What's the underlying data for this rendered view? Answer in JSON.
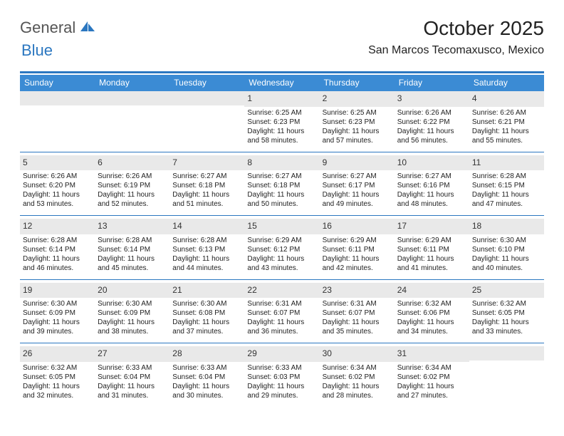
{
  "logo": {
    "general": "General",
    "blue": "Blue",
    "shape_color": "#2b77c0",
    "general_color": "#555555"
  },
  "title": "October 2025",
  "location": "San Marcos Tecomaxusco, Mexico",
  "colors": {
    "header_bg": "#3b8bd4",
    "header_text": "#ffffff",
    "accent_bar": "#2b77c0",
    "daynum_bg": "#e9e9e9",
    "body_text": "#222222",
    "background": "#ffffff"
  },
  "layout": {
    "columns": 7,
    "rows": 5,
    "header_fontsize": 12,
    "daynum_fontsize": 12,
    "cell_fontsize": 10,
    "title_fontsize": 28,
    "location_fontsize": 16
  },
  "day_headers": [
    "Sunday",
    "Monday",
    "Tuesday",
    "Wednesday",
    "Thursday",
    "Friday",
    "Saturday"
  ],
  "weeks": [
    [
      {
        "empty": true
      },
      {
        "empty": true
      },
      {
        "empty": true
      },
      {
        "day": "1",
        "sunrise": "Sunrise: 6:25 AM",
        "sunset": "Sunset: 6:23 PM",
        "daylight": "Daylight: 11 hours and 58 minutes."
      },
      {
        "day": "2",
        "sunrise": "Sunrise: 6:25 AM",
        "sunset": "Sunset: 6:23 PM",
        "daylight": "Daylight: 11 hours and 57 minutes."
      },
      {
        "day": "3",
        "sunrise": "Sunrise: 6:26 AM",
        "sunset": "Sunset: 6:22 PM",
        "daylight": "Daylight: 11 hours and 56 minutes."
      },
      {
        "day": "4",
        "sunrise": "Sunrise: 6:26 AM",
        "sunset": "Sunset: 6:21 PM",
        "daylight": "Daylight: 11 hours and 55 minutes."
      }
    ],
    [
      {
        "day": "5",
        "sunrise": "Sunrise: 6:26 AM",
        "sunset": "Sunset: 6:20 PM",
        "daylight": "Daylight: 11 hours and 53 minutes."
      },
      {
        "day": "6",
        "sunrise": "Sunrise: 6:26 AM",
        "sunset": "Sunset: 6:19 PM",
        "daylight": "Daylight: 11 hours and 52 minutes."
      },
      {
        "day": "7",
        "sunrise": "Sunrise: 6:27 AM",
        "sunset": "Sunset: 6:18 PM",
        "daylight": "Daylight: 11 hours and 51 minutes."
      },
      {
        "day": "8",
        "sunrise": "Sunrise: 6:27 AM",
        "sunset": "Sunset: 6:18 PM",
        "daylight": "Daylight: 11 hours and 50 minutes."
      },
      {
        "day": "9",
        "sunrise": "Sunrise: 6:27 AM",
        "sunset": "Sunset: 6:17 PM",
        "daylight": "Daylight: 11 hours and 49 minutes."
      },
      {
        "day": "10",
        "sunrise": "Sunrise: 6:27 AM",
        "sunset": "Sunset: 6:16 PM",
        "daylight": "Daylight: 11 hours and 48 minutes."
      },
      {
        "day": "11",
        "sunrise": "Sunrise: 6:28 AM",
        "sunset": "Sunset: 6:15 PM",
        "daylight": "Daylight: 11 hours and 47 minutes."
      }
    ],
    [
      {
        "day": "12",
        "sunrise": "Sunrise: 6:28 AM",
        "sunset": "Sunset: 6:14 PM",
        "daylight": "Daylight: 11 hours and 46 minutes."
      },
      {
        "day": "13",
        "sunrise": "Sunrise: 6:28 AM",
        "sunset": "Sunset: 6:14 PM",
        "daylight": "Daylight: 11 hours and 45 minutes."
      },
      {
        "day": "14",
        "sunrise": "Sunrise: 6:28 AM",
        "sunset": "Sunset: 6:13 PM",
        "daylight": "Daylight: 11 hours and 44 minutes."
      },
      {
        "day": "15",
        "sunrise": "Sunrise: 6:29 AM",
        "sunset": "Sunset: 6:12 PM",
        "daylight": "Daylight: 11 hours and 43 minutes."
      },
      {
        "day": "16",
        "sunrise": "Sunrise: 6:29 AM",
        "sunset": "Sunset: 6:11 PM",
        "daylight": "Daylight: 11 hours and 42 minutes."
      },
      {
        "day": "17",
        "sunrise": "Sunrise: 6:29 AM",
        "sunset": "Sunset: 6:11 PM",
        "daylight": "Daylight: 11 hours and 41 minutes."
      },
      {
        "day": "18",
        "sunrise": "Sunrise: 6:30 AM",
        "sunset": "Sunset: 6:10 PM",
        "daylight": "Daylight: 11 hours and 40 minutes."
      }
    ],
    [
      {
        "day": "19",
        "sunrise": "Sunrise: 6:30 AM",
        "sunset": "Sunset: 6:09 PM",
        "daylight": "Daylight: 11 hours and 39 minutes."
      },
      {
        "day": "20",
        "sunrise": "Sunrise: 6:30 AM",
        "sunset": "Sunset: 6:09 PM",
        "daylight": "Daylight: 11 hours and 38 minutes."
      },
      {
        "day": "21",
        "sunrise": "Sunrise: 6:30 AM",
        "sunset": "Sunset: 6:08 PM",
        "daylight": "Daylight: 11 hours and 37 minutes."
      },
      {
        "day": "22",
        "sunrise": "Sunrise: 6:31 AM",
        "sunset": "Sunset: 6:07 PM",
        "daylight": "Daylight: 11 hours and 36 minutes."
      },
      {
        "day": "23",
        "sunrise": "Sunrise: 6:31 AM",
        "sunset": "Sunset: 6:07 PM",
        "daylight": "Daylight: 11 hours and 35 minutes."
      },
      {
        "day": "24",
        "sunrise": "Sunrise: 6:32 AM",
        "sunset": "Sunset: 6:06 PM",
        "daylight": "Daylight: 11 hours and 34 minutes."
      },
      {
        "day": "25",
        "sunrise": "Sunrise: 6:32 AM",
        "sunset": "Sunset: 6:05 PM",
        "daylight": "Daylight: 11 hours and 33 minutes."
      }
    ],
    [
      {
        "day": "26",
        "sunrise": "Sunrise: 6:32 AM",
        "sunset": "Sunset: 6:05 PM",
        "daylight": "Daylight: 11 hours and 32 minutes."
      },
      {
        "day": "27",
        "sunrise": "Sunrise: 6:33 AM",
        "sunset": "Sunset: 6:04 PM",
        "daylight": "Daylight: 11 hours and 31 minutes."
      },
      {
        "day": "28",
        "sunrise": "Sunrise: 6:33 AM",
        "sunset": "Sunset: 6:04 PM",
        "daylight": "Daylight: 11 hours and 30 minutes."
      },
      {
        "day": "29",
        "sunrise": "Sunrise: 6:33 AM",
        "sunset": "Sunset: 6:03 PM",
        "daylight": "Daylight: 11 hours and 29 minutes."
      },
      {
        "day": "30",
        "sunrise": "Sunrise: 6:34 AM",
        "sunset": "Sunset: 6:02 PM",
        "daylight": "Daylight: 11 hours and 28 minutes."
      },
      {
        "day": "31",
        "sunrise": "Sunrise: 6:34 AM",
        "sunset": "Sunset: 6:02 PM",
        "daylight": "Daylight: 11 hours and 27 minutes."
      },
      {
        "empty": true
      }
    ]
  ]
}
